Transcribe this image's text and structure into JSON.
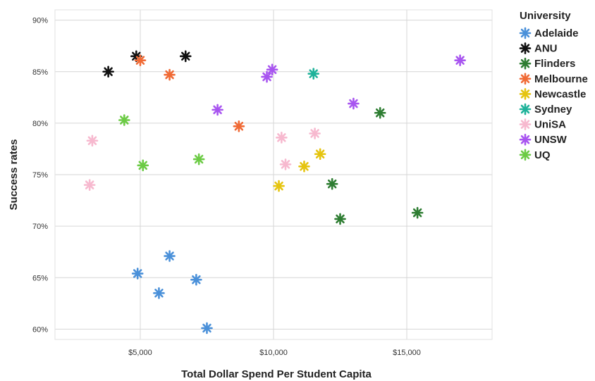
{
  "chart_data": {
    "type": "scatter",
    "xlabel": "Total Dollar Spend Per Student Capita",
    "ylabel": "Success rates",
    "xlim": [
      1800,
      18200
    ],
    "ylim": [
      59,
      91
    ],
    "x_ticks": [
      5000,
      10000,
      15000
    ],
    "x_tick_labels": [
      "$5,000",
      "$10,000",
      "$15,000"
    ],
    "y_ticks": [
      60,
      65,
      70,
      75,
      80,
      85,
      90
    ],
    "y_tick_labels": [
      "60%",
      "65%",
      "70%",
      "75%",
      "80%",
      "85%",
      "90%"
    ],
    "grid": true,
    "marker": "asterisk",
    "legend": {
      "title": "University",
      "placement": "right"
    },
    "series": [
      {
        "name": "Adelaide",
        "color": "#4a90d9",
        "points": [
          [
            4900,
            65.4
          ],
          [
            5700,
            63.5
          ],
          [
            6100,
            67.1
          ],
          [
            7100,
            64.8
          ],
          [
            7500,
            60.1
          ]
        ]
      },
      {
        "name": "ANU",
        "color": "#111111",
        "points": [
          [
            3800,
            85.0
          ],
          [
            4850,
            86.5
          ],
          [
            6700,
            86.5
          ]
        ]
      },
      {
        "name": "Flinders",
        "color": "#2e7d32",
        "points": [
          [
            12200,
            74.1
          ],
          [
            12500,
            70.7
          ],
          [
            14000,
            81.0
          ],
          [
            15400,
            71.3
          ]
        ]
      },
      {
        "name": "Melbourne",
        "color": "#f06a35",
        "points": [
          [
            5000,
            86.1
          ],
          [
            6100,
            84.7
          ],
          [
            8700,
            79.7
          ]
        ]
      },
      {
        "name": "Newcastle",
        "color": "#e5c40f",
        "points": [
          [
            10200,
            73.9
          ],
          [
            11150,
            75.8
          ],
          [
            11750,
            77.0
          ]
        ]
      },
      {
        "name": "Sydney",
        "color": "#1fb29a",
        "points": [
          [
            11500,
            84.8
          ]
        ]
      },
      {
        "name": "UniSA",
        "color": "#f7b9cf",
        "points": [
          [
            3100,
            74.0
          ],
          [
            3200,
            78.3
          ],
          [
            10300,
            78.6
          ],
          [
            10450,
            76.0
          ],
          [
            11550,
            79.0
          ]
        ]
      },
      {
        "name": "UNSW",
        "color": "#a855f0",
        "points": [
          [
            7900,
            81.3
          ],
          [
            9750,
            84.5
          ],
          [
            9950,
            85.2
          ],
          [
            13000,
            81.9
          ],
          [
            17000,
            86.1
          ]
        ]
      },
      {
        "name": "UQ",
        "color": "#6ccb45",
        "points": [
          [
            4400,
            80.3
          ],
          [
            5100,
            75.9
          ],
          [
            7200,
            76.5
          ]
        ]
      }
    ]
  }
}
